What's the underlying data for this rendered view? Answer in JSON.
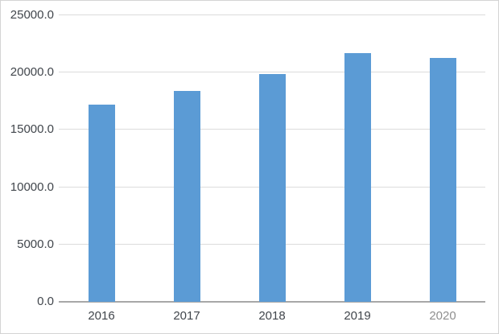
{
  "chart_data": {
    "type": "bar",
    "categories": [
      "2016",
      "2017",
      "2018",
      "2019",
      "2020"
    ],
    "values": [
      17200,
      18400,
      19900,
      21700,
      21300
    ],
    "title": "",
    "xlabel": "",
    "ylabel": "",
    "ylim": [
      0,
      25000
    ],
    "y_ticks": [
      "25000.0",
      "20000.0",
      "15000.0",
      "10000.0",
      "5000.0",
      "0.0"
    ],
    "grid": true,
    "legend": false,
    "colors": {
      "bar": "#5b9bd5",
      "gridline": "#dcdcdc",
      "axis_line": "#a8a8a8",
      "tick_label": "#41464c",
      "muted_last_label": "#8f8f8f",
      "canvas_border": "#d4d4d4",
      "background": "#ffffff"
    }
  }
}
